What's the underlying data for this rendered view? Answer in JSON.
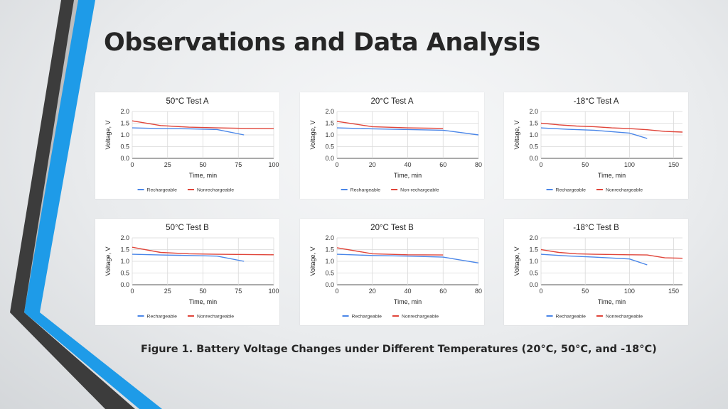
{
  "slide": {
    "title": "Observations and Data Analysis",
    "caption": "Figure 1. Battery Voltage Changes under Different Temperatures (20°C, 50°C, and -18°C)"
  },
  "colors": {
    "rechargeable": "#4a86e8",
    "nonrechargeable": "#e0453a",
    "accent_dark": "#3c3c3c",
    "accent_blue": "#1e9be8"
  },
  "chart_data": [
    {
      "type": "line",
      "title": "50°C Test A",
      "xlabel": "Time, min",
      "ylabel": "Voltage, V",
      "xlim": [
        0,
        100
      ],
      "xticks": [
        0,
        25,
        50,
        75,
        100
      ],
      "ylim": [
        0,
        2
      ],
      "yticks": [
        "0.0",
        "0.5",
        "1.0",
        "1.5",
        "2.0"
      ],
      "grid": true,
      "legend": "bottom",
      "series": [
        {
          "name": "Rechargeable",
          "x": [
            0,
            20,
            40,
            60,
            79
          ],
          "y": [
            1.3,
            1.27,
            1.26,
            1.23,
            1.0
          ]
        },
        {
          "name": "Nonrechargeable",
          "x": [
            0,
            20,
            40,
            60,
            80,
            100
          ],
          "y": [
            1.6,
            1.4,
            1.33,
            1.3,
            1.28,
            1.27
          ]
        }
      ]
    },
    {
      "type": "line",
      "title": "20°C Test A",
      "xlabel": "Time, min",
      "ylabel": "Voltage, V",
      "xlim": [
        0,
        80
      ],
      "xticks": [
        0,
        20,
        40,
        60,
        80
      ],
      "ylim": [
        0,
        2
      ],
      "yticks": [
        "0.0",
        "0.5",
        "1.0",
        "1.5",
        "2.0"
      ],
      "grid": true,
      "legend": "bottom",
      "series": [
        {
          "name": "Rechargeable",
          "x": [
            0,
            20,
            40,
            60,
            80
          ],
          "y": [
            1.3,
            1.26,
            1.23,
            1.2,
            1.0
          ]
        },
        {
          "name": "Non-rechargeable",
          "x": [
            0,
            20,
            40,
            60
          ],
          "y": [
            1.58,
            1.35,
            1.3,
            1.28
          ]
        }
      ]
    },
    {
      "type": "line",
      "title": "-18°C Test A",
      "xlabel": "Time, min",
      "ylabel": "Voltage, V",
      "xlim": [
        0,
        160
      ],
      "xticks": [
        0,
        50,
        100,
        150
      ],
      "ylim": [
        0,
        2
      ],
      "yticks": [
        "0.0",
        "0.5",
        "1.0",
        "1.5",
        "2.0"
      ],
      "grid": true,
      "legend": "bottom",
      "series": [
        {
          "name": "Rechargeable",
          "x": [
            0,
            30,
            60,
            100,
            120
          ],
          "y": [
            1.3,
            1.24,
            1.2,
            1.08,
            0.85
          ]
        },
        {
          "name": "Nonrechargeable",
          "x": [
            0,
            20,
            40,
            60,
            80,
            100,
            120,
            140,
            160
          ],
          "y": [
            1.5,
            1.43,
            1.38,
            1.35,
            1.3,
            1.27,
            1.22,
            1.15,
            1.12
          ]
        }
      ]
    },
    {
      "type": "line",
      "title": "50°C Test B",
      "xlabel": "Time, min",
      "ylabel": "Voltage, V",
      "xlim": [
        0,
        100
      ],
      "xticks": [
        0,
        25,
        50,
        75,
        100
      ],
      "ylim": [
        0,
        2
      ],
      "yticks": [
        "0.0",
        "0.5",
        "1.0",
        "1.5",
        "2.0"
      ],
      "grid": true,
      "legend": "bottom",
      "series": [
        {
          "name": "Rechargeable",
          "x": [
            0,
            20,
            40,
            60,
            79
          ],
          "y": [
            1.3,
            1.27,
            1.25,
            1.22,
            1.0
          ]
        },
        {
          "name": "Nonrechargeable",
          "x": [
            0,
            20,
            40,
            60,
            80,
            100
          ],
          "y": [
            1.6,
            1.38,
            1.32,
            1.3,
            1.29,
            1.28
          ]
        }
      ]
    },
    {
      "type": "line",
      "title": "20°C Test B",
      "xlabel": "Time, min",
      "ylabel": "Voltage, V",
      "xlim": [
        0,
        80
      ],
      "xticks": [
        0,
        20,
        40,
        60,
        80
      ],
      "ylim": [
        0,
        2
      ],
      "yticks": [
        "0.0",
        "0.5",
        "1.0",
        "1.5",
        "2.0"
      ],
      "grid": true,
      "legend": "bottom",
      "series": [
        {
          "name": "Rechargeable",
          "x": [
            0,
            20,
            40,
            60,
            80
          ],
          "y": [
            1.3,
            1.25,
            1.22,
            1.18,
            0.93
          ]
        },
        {
          "name": "Nonrechargeable",
          "x": [
            0,
            20,
            40,
            60
          ],
          "y": [
            1.58,
            1.32,
            1.28,
            1.27
          ]
        }
      ]
    },
    {
      "type": "line",
      "title": "-18°C Test B",
      "xlabel": "Time, min",
      "ylabel": "Voltage, V",
      "xlim": [
        0,
        160
      ],
      "xticks": [
        0,
        50,
        100,
        150
      ],
      "ylim": [
        0,
        2
      ],
      "yticks": [
        "0.0",
        "0.5",
        "1.0",
        "1.5",
        "2.0"
      ],
      "grid": true,
      "legend": "bottom",
      "series": [
        {
          "name": "Rechargeable",
          "x": [
            0,
            30,
            60,
            100,
            120
          ],
          "y": [
            1.3,
            1.23,
            1.18,
            1.1,
            0.85
          ]
        },
        {
          "name": "Nonrechargeable",
          "x": [
            0,
            20,
            40,
            60,
            80,
            100,
            120,
            140,
            160
          ],
          "y": [
            1.5,
            1.38,
            1.32,
            1.3,
            1.29,
            1.28,
            1.27,
            1.15,
            1.13
          ]
        }
      ]
    }
  ]
}
